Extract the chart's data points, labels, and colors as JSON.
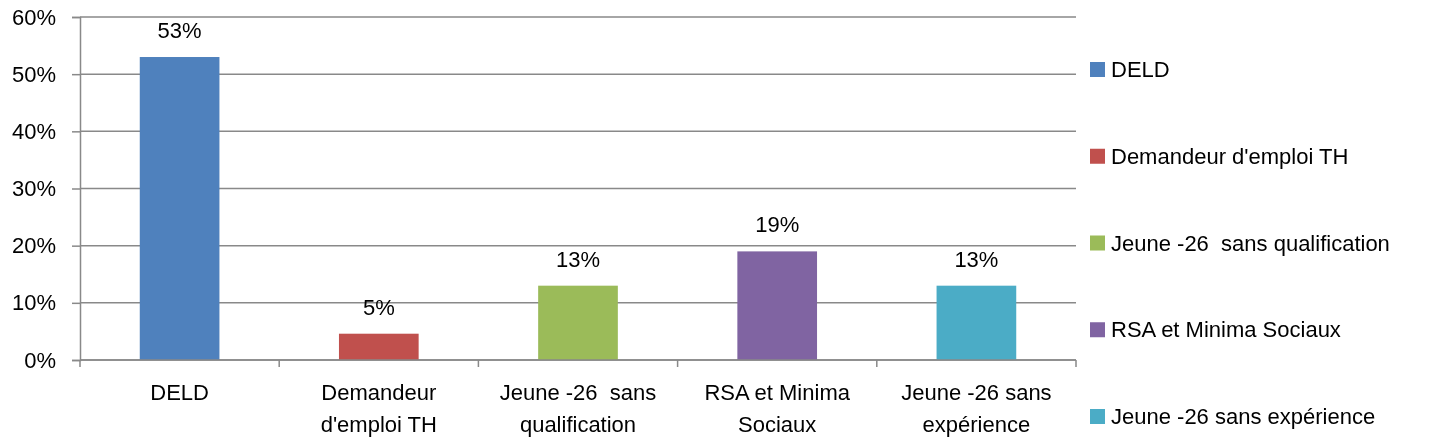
{
  "chart_data": {
    "type": "bar",
    "categories": [
      "DELD",
      "Demandeur d'emploi TH",
      "Jeune -26  sans qualification",
      "RSA et Minima Sociaux",
      "Jeune -26 sans expérience"
    ],
    "stacked": true,
    "series": [
      {
        "name": "DELD",
        "color": "#4f81bd",
        "values": [
          53,
          null,
          null,
          null,
          null
        ],
        "value_labels": [
          "53%",
          null,
          null,
          null,
          null
        ]
      },
      {
        "name": "Demandeur d'emploi TH",
        "color": "#c0504d",
        "values": [
          null,
          4.6,
          null,
          null,
          null
        ],
        "value_labels": [
          null,
          "5%",
          null,
          null,
          null
        ]
      },
      {
        "name": "Jeune -26  sans qualification",
        "color": "#9bbb59",
        "values": [
          null,
          null,
          13,
          null,
          null
        ],
        "value_labels": [
          null,
          null,
          "13%",
          null,
          null
        ]
      },
      {
        "name": "RSA et Minima Sociaux",
        "color": "#8064a2",
        "values": [
          null,
          null,
          null,
          19,
          null
        ],
        "value_labels": [
          null,
          null,
          null,
          "19%",
          null
        ]
      },
      {
        "name": "Jeune -26 sans expérience",
        "color": "#4bacc6",
        "values": [
          null,
          null,
          null,
          null,
          13
        ],
        "value_labels": [
          null,
          null,
          null,
          null,
          "13%"
        ]
      }
    ],
    "ylim": [
      0,
      60
    ],
    "yticks": [
      {
        "value": 0,
        "label": "0%"
      },
      {
        "value": 10,
        "label": "10%"
      },
      {
        "value": 20,
        "label": "20%"
      },
      {
        "value": 30,
        "label": "30%"
      },
      {
        "value": 40,
        "label": "40%"
      },
      {
        "value": 50,
        "label": "50%"
      },
      {
        "value": 60,
        "label": "60%"
      }
    ],
    "grid": "y",
    "legend": "right"
  }
}
